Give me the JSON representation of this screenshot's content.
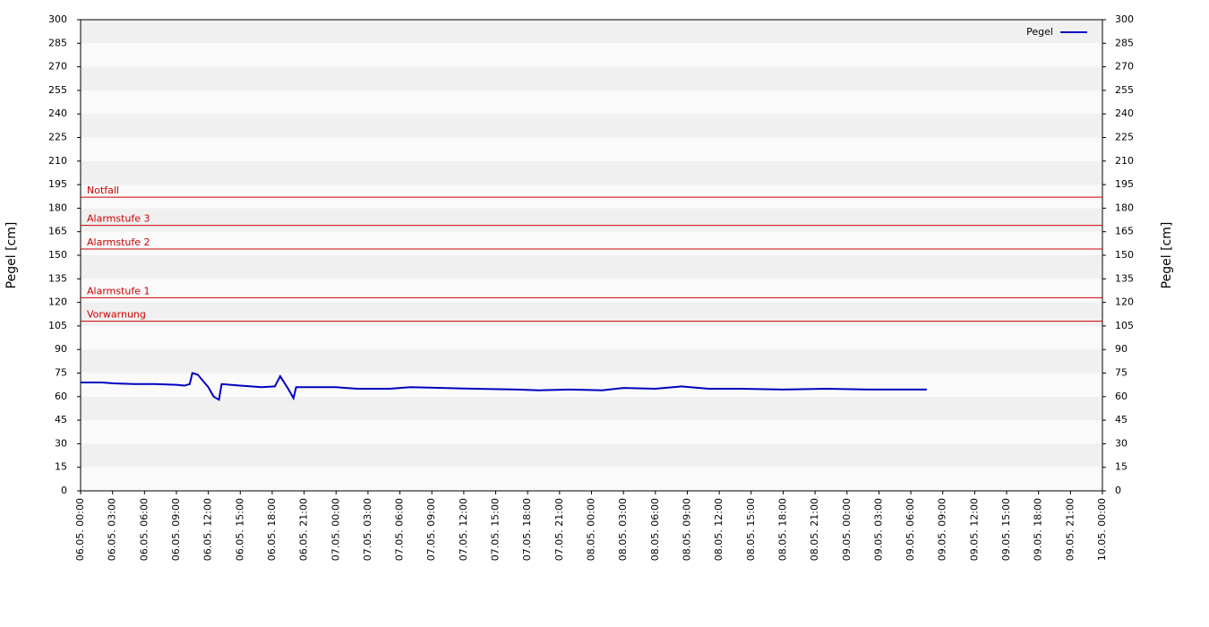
{
  "chart_data": {
    "type": "line",
    "ylabel": "Pegel [cm]",
    "y2label": "Pegel [cm]",
    "ylim": [
      0,
      300
    ],
    "yticks": [
      0,
      15,
      30,
      45,
      60,
      75,
      90,
      105,
      120,
      135,
      150,
      165,
      180,
      195,
      210,
      225,
      240,
      255,
      270,
      285,
      300
    ],
    "y2lim": [
      0,
      300
    ],
    "y2ticks": [
      0,
      15,
      30,
      45,
      60,
      75,
      90,
      105,
      120,
      135,
      150,
      165,
      180,
      195,
      210,
      225,
      240,
      255,
      270,
      285,
      300
    ],
    "xlim": [
      "06.05. 00:00",
      "10.05. 00:00"
    ],
    "xticks": [
      "06.05. 00:00",
      "06.05. 03:00",
      "06.05. 06:00",
      "06.05. 09:00",
      "06.05. 12:00",
      "06.05. 15:00",
      "06.05. 18:00",
      "06.05. 21:00",
      "07.05. 00:00",
      "07.05. 03:00",
      "07.05. 06:00",
      "07.05. 09:00",
      "07.05. 12:00",
      "07.05. 15:00",
      "07.05. 18:00",
      "07.05. 21:00",
      "08.05. 00:00",
      "08.05. 03:00",
      "08.05. 06:00",
      "08.05. 09:00",
      "08.05. 12:00",
      "08.05. 15:00",
      "08.05. 18:00",
      "08.05. 21:00",
      "09.05. 00:00",
      "09.05. 03:00",
      "09.05. 06:00",
      "09.05. 09:00",
      "09.05. 12:00",
      "09.05. 15:00",
      "09.05. 18:00",
      "09.05. 21:00",
      "10.05. 00:00"
    ],
    "legend": "top-right",
    "thresholds": [
      {
        "label": "Notfall",
        "value": 187
      },
      {
        "label": "Alarmstufe 3",
        "value": 169
      },
      {
        "label": "Alarmstufe 2",
        "value": 154
      },
      {
        "label": "Alarmstufe 1",
        "value": 123
      },
      {
        "label": "Vorwarnung",
        "value": 108
      }
    ],
    "threshold_color": "#cc0000",
    "series": [
      {
        "name": "Pegel",
        "color": "#0000c0",
        "x": [
          "06.05. 00:00",
          "06.05. 02:00",
          "06.05. 03:00",
          "06.05. 05:00",
          "06.05. 07:00",
          "06.05. 09:00",
          "06.05. 09:45",
          "06.05. 10:15",
          "06.05. 10:30",
          "06.05. 11:00",
          "06.05. 12:00",
          "06.05. 12:30",
          "06.05. 13:00",
          "06.05. 13:15",
          "06.05. 15:00",
          "06.05. 17:00",
          "06.05. 18:15",
          "06.05. 18:45",
          "06.05. 19:30",
          "06.05. 20:00",
          "06.05. 20:15",
          "06.05. 22:00",
          "07.05. 00:00",
          "07.05. 02:00",
          "07.05. 05:00",
          "07.05. 07:00",
          "07.05. 10:00",
          "07.05. 13:00",
          "07.05. 17:00",
          "07.05. 19:00",
          "07.05. 22:00",
          "08.05. 01:00",
          "08.05. 03:00",
          "08.05. 06:00",
          "08.05. 08:30",
          "08.05. 11:00",
          "08.05. 14:00",
          "08.05. 18:00",
          "08.05. 22:00",
          "09.05. 02:00",
          "09.05. 05:00",
          "09.05. 07:30"
        ],
        "values": [
          69,
          69,
          68.5,
          68,
          68,
          67.5,
          67,
          68,
          75,
          74,
          66,
          60,
          58,
          68,
          67,
          66,
          66.5,
          73,
          65,
          59,
          66,
          66,
          66,
          65,
          65,
          66,
          65.5,
          65,
          64.5,
          64,
          64.5,
          64,
          65.5,
          65,
          66.5,
          65,
          65,
          64.5,
          65,
          64.5,
          64.5,
          64.5
        ]
      }
    ]
  }
}
